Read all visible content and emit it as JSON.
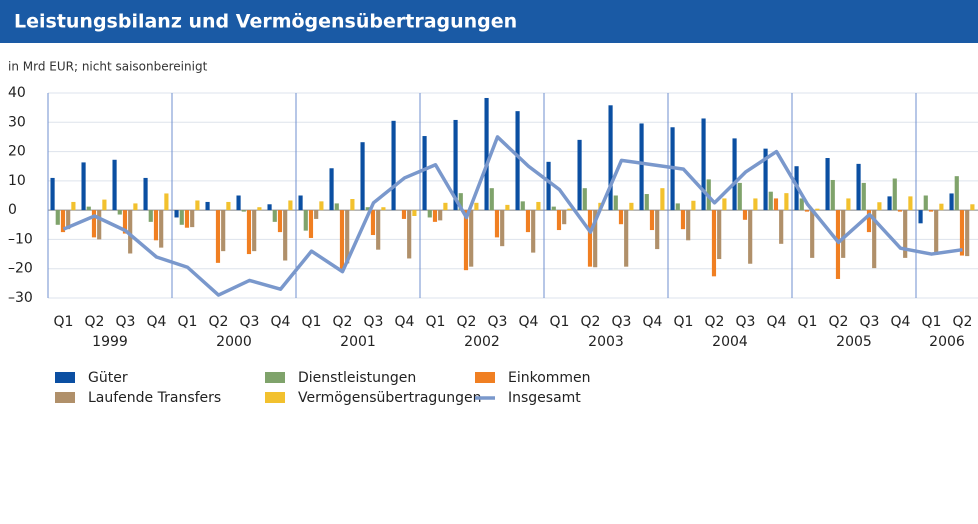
{
  "chart_data": {
    "type": "bar",
    "title": "Leistungsbilanz und Vermögensübertragungen",
    "subtitle": "in Mrd EUR; nicht saisonbereinigt",
    "categories": [
      "Q1",
      "Q2",
      "Q3",
      "Q4",
      "Q1",
      "Q2",
      "Q3",
      "Q4",
      "Q1",
      "Q2",
      "Q3",
      "Q4",
      "Q1",
      "Q2",
      "Q3",
      "Q4",
      "Q1",
      "Q2",
      "Q3",
      "Q4",
      "Q1",
      "Q2",
      "Q3",
      "Q4",
      "Q1",
      "Q2",
      "Q3",
      "Q4",
      "Q1",
      "Q2"
    ],
    "years": [
      "1999",
      "2000",
      "2001",
      "2002",
      "2003",
      "2004",
      "2005",
      "2006"
    ],
    "ylim": [
      -30,
      40
    ],
    "yticks": [
      {
        "value": -30,
        "label": "–30"
      },
      {
        "value": -20,
        "label": "–20"
      },
      {
        "value": -10,
        "label": "–10"
      },
      0,
      10,
      20,
      30,
      40
    ],
    "grid": true,
    "series": [
      {
        "name": "Güter",
        "color": "#0b4fa2",
        "values": [
          11,
          16.3,
          17.2,
          11,
          -2.5,
          2.8,
          5,
          2,
          5,
          14.3,
          23.2,
          30.5,
          25.3,
          30.8,
          38.3,
          33.8,
          16.5,
          24,
          35.8,
          29.6,
          28.3,
          31.3,
          24.5,
          21,
          15,
          17.8,
          15.8,
          4.7,
          -4.5,
          5.7
        ]
      },
      {
        "name": "Dienstleistungen",
        "color": "#7fa36b",
        "values": [
          -5,
          1.2,
          -1.5,
          -4,
          -5,
          0,
          -0.5,
          -4,
          -7,
          2.3,
          1,
          0,
          -2.5,
          5.8,
          7.5,
          3,
          1.2,
          7.5,
          5,
          5.5,
          2.3,
          10.5,
          9.3,
          6.3,
          4,
          10.3,
          9.3,
          10.8,
          5,
          11.6
        ]
      },
      {
        "name": "Einkommen",
        "color": "#f07f22",
        "values": [
          -7.5,
          -9.3,
          -8,
          -10.3,
          -6,
          -18,
          -15,
          -7.5,
          -9.5,
          -20.3,
          -8.5,
          -3,
          -4,
          -20.5,
          -9.3,
          -7.5,
          -6.8,
          -19.3,
          -4.8,
          -6.8,
          -6.5,
          -22.6,
          -3.3,
          4,
          -0.5,
          -23.5,
          -7.5,
          -0.5,
          -0.5,
          -15.5
        ]
      },
      {
        "name": "Laufende Transfers",
        "color": "#b0906a",
        "values": [
          -6.5,
          -10,
          -14.8,
          -12.8,
          -5.8,
          -14,
          -14,
          -17.2,
          -3,
          -18.2,
          -13.5,
          -16.5,
          -3.5,
          -19.3,
          -12.3,
          -14.5,
          -4.8,
          -19.5,
          -19.3,
          -13.3,
          -10.3,
          -16.7,
          -18.3,
          -11.5,
          -16.3,
          -16.3,
          -19.8,
          -16.3,
          -15.3,
          -15.7
        ]
      },
      {
        "name": "Vermögensübertragungen",
        "color": "#f2c12e",
        "values": [
          2.8,
          3.6,
          2.3,
          5.7,
          3.3,
          2.8,
          1,
          3.3,
          3,
          3.8,
          1,
          -2,
          2.5,
          2.5,
          1.8,
          2.8,
          0.5,
          2.5,
          2.5,
          7.5,
          3.2,
          4,
          4,
          5.8,
          0.5,
          4,
          2.7,
          4.7,
          2.2,
          2
        ]
      },
      {
        "name": "Insgesamt",
        "type": "line",
        "color": "#7a98cc",
        "values": [
          -6.5,
          -2,
          -7,
          -16,
          -19.5,
          -29,
          -24,
          -27,
          -14,
          -21,
          2.5,
          11,
          15.5,
          -2.5,
          25,
          15,
          7,
          -7.5,
          17,
          15.5,
          14,
          2.5,
          13,
          20,
          2,
          -11,
          -1.5,
          -13,
          -15,
          -13.5
        ]
      }
    ]
  }
}
